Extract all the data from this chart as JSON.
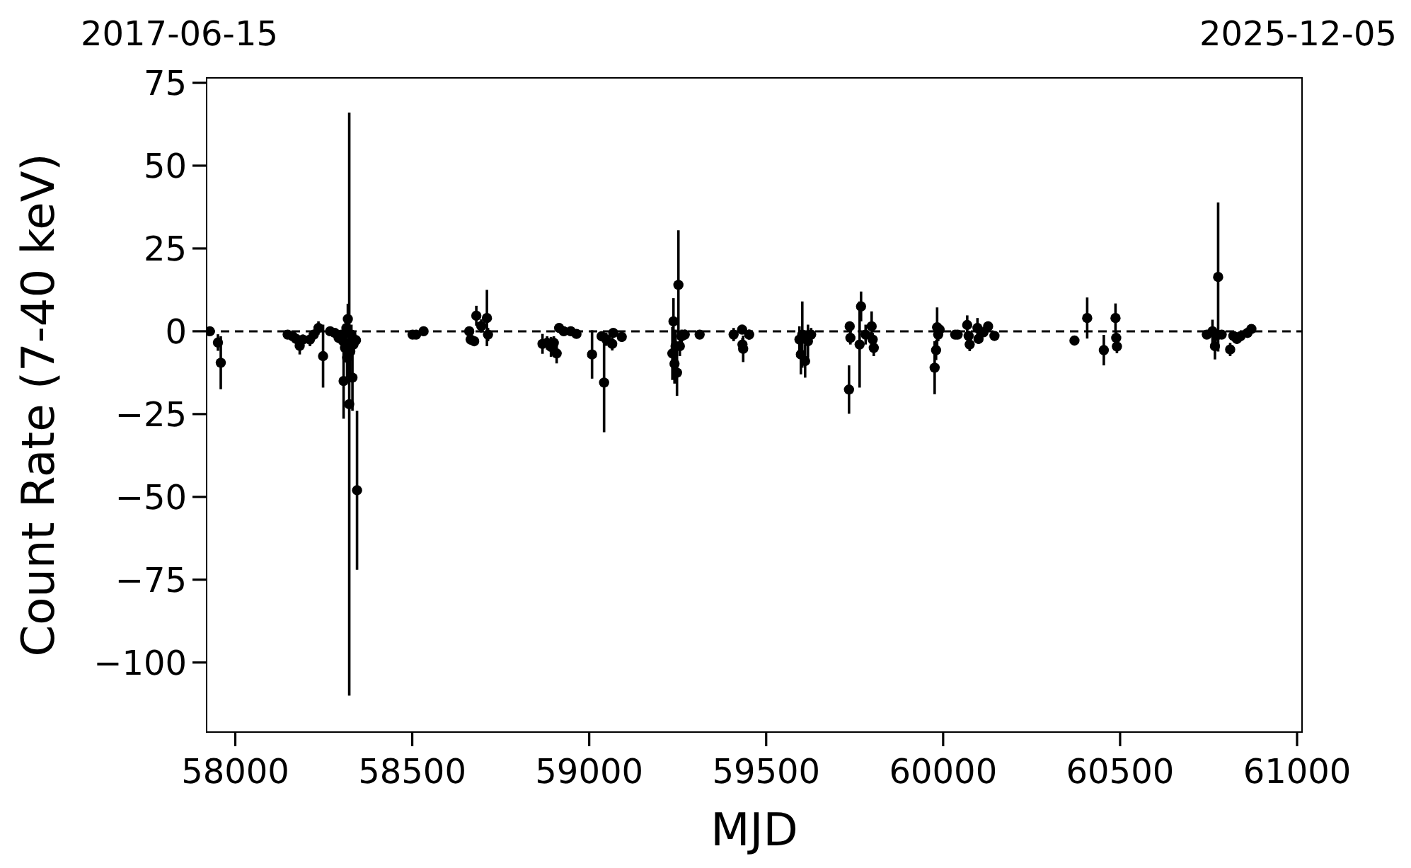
{
  "chart_data": {
    "type": "scatter",
    "xlabel": "MJD",
    "ylabel": "Count Rate (7-40 keV)",
    "annotations": [
      "2017-06-15",
      "2025-12-05"
    ],
    "xlim": [
      57919,
      61014
    ],
    "ylim": [
      -121,
      76.5
    ],
    "xticks": [
      58000,
      58500,
      59000,
      59500,
      60000,
      60500,
      61000
    ],
    "yticks": [
      -100,
      -75,
      -50,
      -25,
      0,
      25,
      50,
      75
    ],
    "color": "#000000",
    "marker": "circle",
    "ref_lines": [
      {
        "axis": "y",
        "value": 0,
        "color": "#000000",
        "line_style": "dashed"
      }
    ],
    "x": [
      57928,
      57951,
      57959,
      58148,
      58162,
      58172,
      58182,
      58191,
      58211,
      58222,
      58235,
      58248,
      58268,
      58281,
      58292,
      58300,
      58305,
      58306,
      58310,
      58314,
      58316,
      58318,
      58322,
      58325,
      58328,
      58331,
      58334,
      58341,
      58344,
      58501,
      58511,
      58532,
      58661,
      58665,
      58675,
      58681,
      58695,
      58711,
      58714,
      58868,
      58881,
      58892,
      58900,
      58908,
      58915,
      58928,
      58948,
      58964,
      59008,
      59035,
      59042,
      59048,
      59065,
      59068,
      59092,
      59235,
      59238,
      59241,
      59244,
      59248,
      59252,
      59256,
      59261,
      59270,
      59312,
      59408,
      59432,
      59433,
      59435,
      59452,
      59594,
      59598,
      59602,
      59610,
      59618,
      59627,
      59734,
      59736,
      59738,
      59764,
      59768,
      59781,
      59798,
      59801,
      59804,
      59976,
      59980,
      59983,
      59986,
      59990,
      60034,
      60041,
      60068,
      60072,
      60075,
      60097,
      60100,
      60114,
      60127,
      60145,
      60371,
      60407,
      60454,
      60487,
      60489,
      60491,
      60745,
      60761,
      60768,
      60771,
      60777,
      60787,
      60811,
      60820,
      60830,
      60840,
      60860,
      60871
    ],
    "values": [
      0,
      -3.4,
      -9.5,
      -1,
      -1.5,
      -2.3,
      -4.4,
      -2.5,
      -2.5,
      -1,
      1,
      -7.5,
      0,
      -0.5,
      -2,
      -1,
      -3,
      -15,
      -5,
      1,
      -8,
      3.7,
      -22,
      -6,
      -1,
      -14,
      -4,
      -2.7,
      -48,
      -1,
      -1,
      0,
      0,
      -2.5,
      -3,
      4.7,
      1.6,
      4,
      -1,
      -3.8,
      -3.5,
      -4.7,
      -3.5,
      -6.7,
      1,
      0,
      0,
      -0.8,
      -7,
      -1.5,
      -15.5,
      -2.4,
      -3.8,
      -0.5,
      -1.7,
      -6.7,
      3,
      -9.8,
      -4.5,
      -12.5,
      14,
      -4.5,
      -1.5,
      -1,
      -1,
      -1,
      0.5,
      -4,
      -5.3,
      -1,
      -2.5,
      -7,
      -1,
      -9,
      -3,
      -1,
      -17.6,
      1.5,
      -2,
      -4,
      7.5,
      -1,
      1.5,
      -2.5,
      -5,
      -11,
      -5.7,
      1.2,
      -1,
      0.5,
      -1,
      -1,
      1.9,
      -1.4,
      -4,
      1,
      -2.3,
      -0.3,
      1.5,
      -1.4,
      -2.8,
      4,
      -5.7,
      4,
      -2,
      -4.6,
      -1,
      0,
      -4.5,
      -1.4,
      16.4,
      -1,
      -5.5,
      -1.4,
      -2.3,
      -1.5,
      -0.5,
      0.7
    ],
    "errors": [
      1,
      2.5,
      8,
      1,
      1,
      1.5,
      2.6,
      1.5,
      2,
      1.5,
      2,
      9.5,
      1,
      1,
      1.5,
      1,
      2,
      11.4,
      4,
      3,
      6,
      4.6,
      88,
      7,
      3,
      10,
      3,
      1.5,
      24,
      1,
      1,
      1,
      1,
      1.5,
      1.5,
      3,
      2,
      8.5,
      2,
      3,
      2,
      3,
      2,
      3,
      1,
      1,
      1,
      1,
      7.3,
      1.5,
      15,
      2,
      2,
      1,
      1.5,
      8,
      7,
      6,
      5,
      7,
      16.5,
      3,
      2,
      1.5,
      1,
      2,
      1,
      2,
      4,
      1.5,
      4,
      6,
      10,
      5,
      5,
      2,
      7.3,
      1.5,
      2,
      13,
      4.5,
      3,
      4.5,
      2,
      2.5,
      8,
      3,
      6,
      2,
      1,
      1,
      1,
      2.9,
      1.5,
      2,
      3,
      1.5,
      1,
      1.5,
      1,
      1.5,
      6.2,
      4.6,
      4.4,
      2,
      2,
      1,
      3.5,
      4,
      1.5,
      22.5,
      1,
      2,
      1,
      1.5,
      1.5,
      1,
      1
    ]
  }
}
